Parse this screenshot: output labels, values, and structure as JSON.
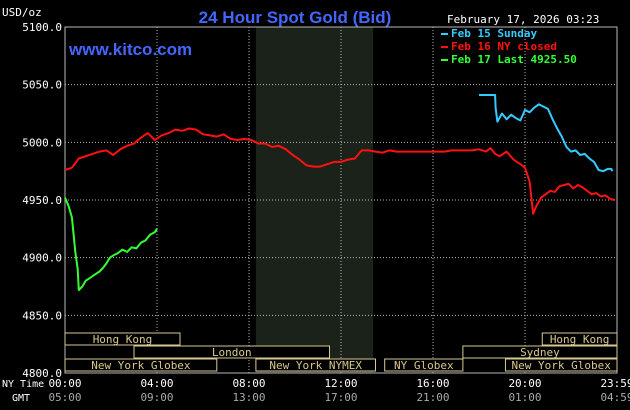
{
  "chart_data": {
    "type": "line",
    "title": "24 Hour Spot Gold (Bid)",
    "ylabel": "USD/oz",
    "timestamp": "February 17, 2026 03:23",
    "watermark": "www.kitco.com",
    "ylim": [
      4800,
      5100
    ],
    "yticks": [
      {
        "value": 5100,
        "label": "5100.0"
      },
      {
        "value": 5050,
        "label": "5050.0"
      },
      {
        "value": 5000,
        "label": "5000.0"
      },
      {
        "value": 4950,
        "label": "4950.0"
      },
      {
        "value": 4900,
        "label": "4900.0"
      },
      {
        "value": 4850,
        "label": "4850.0"
      },
      {
        "value": 4800,
        "label": "4800.0"
      }
    ],
    "xlim": [
      0,
      24
    ],
    "xticks": [
      {
        "hour": 0,
        "ny": "00:00",
        "gmt": "05:00"
      },
      {
        "hour": 4,
        "ny": "04:00",
        "gmt": "09:00"
      },
      {
        "hour": 8,
        "ny": "08:00",
        "gmt": "13:00"
      },
      {
        "hour": 12,
        "ny": "12:00",
        "gmt": "17:00"
      },
      {
        "hour": 16,
        "ny": "16:00",
        "gmt": "21:00"
      },
      {
        "hour": 20,
        "ny": "20:00",
        "gmt": "01:00"
      },
      {
        "hour": 24,
        "ny": "23:59",
        "gmt": "04:59"
      }
    ],
    "xaxis_labels": {
      "ny": "NY Time",
      "gmt": "GMT"
    },
    "shaded_band": {
      "from_hour": 8.3,
      "to_hour": 13.4,
      "color": "#1a221a"
    },
    "series": [
      {
        "name": "Feb 15 Sunday",
        "color": "#33ccff",
        "points": [
          [
            18,
            5041
          ],
          [
            18.5,
            5041
          ],
          [
            18.7,
            5041
          ],
          [
            18.72,
            5030
          ],
          [
            18.8,
            5018
          ],
          [
            19.0,
            5025
          ],
          [
            19.2,
            5020
          ],
          [
            19.4,
            5024
          ],
          [
            19.6,
            5021
          ],
          [
            19.8,
            5019
          ],
          [
            20.0,
            5028
          ],
          [
            20.2,
            5026
          ],
          [
            20.4,
            5030
          ],
          [
            20.6,
            5033
          ],
          [
            20.8,
            5031
          ],
          [
            21.0,
            5029
          ],
          [
            21.2,
            5020
          ],
          [
            21.4,
            5012
          ],
          [
            21.6,
            5005
          ],
          [
            21.8,
            4996
          ],
          [
            22.0,
            4992
          ],
          [
            22.2,
            4993
          ],
          [
            22.4,
            4989
          ],
          [
            22.6,
            4990
          ],
          [
            22.8,
            4986
          ],
          [
            23.0,
            4983
          ],
          [
            23.2,
            4976
          ],
          [
            23.4,
            4975
          ],
          [
            23.6,
            4977
          ],
          [
            23.75,
            4977
          ],
          [
            23.8,
            4975
          ]
        ]
      },
      {
        "name": "Feb 16 NY closed",
        "color": "#ff1111",
        "points": [
          [
            0,
            4976
          ],
          [
            0.3,
            4978
          ],
          [
            0.6,
            4986
          ],
          [
            0.9,
            4988
          ],
          [
            1.2,
            4990
          ],
          [
            1.5,
            4992
          ],
          [
            1.8,
            4993
          ],
          [
            2.1,
            4989
          ],
          [
            2.4,
            4994
          ],
          [
            2.7,
            4997
          ],
          [
            3.0,
            4999
          ],
          [
            3.3,
            5004
          ],
          [
            3.6,
            5008
          ],
          [
            3.9,
            5002
          ],
          [
            4.2,
            5006
          ],
          [
            4.5,
            5008
          ],
          [
            4.8,
            5011
          ],
          [
            5.1,
            5010
          ],
          [
            5.4,
            5012
          ],
          [
            5.7,
            5011
          ],
          [
            6.0,
            5007
          ],
          [
            6.3,
            5006
          ],
          [
            6.6,
            5005
          ],
          [
            6.9,
            5007
          ],
          [
            7.2,
            5003
          ],
          [
            7.5,
            5002
          ],
          [
            7.8,
            5003
          ],
          [
            8.1,
            5002
          ],
          [
            8.4,
            4999
          ],
          [
            8.7,
            4999
          ],
          [
            9.0,
            4996
          ],
          [
            9.3,
            4997
          ],
          [
            9.6,
            4994
          ],
          [
            9.9,
            4989
          ],
          [
            10.2,
            4985
          ],
          [
            10.5,
            4980
          ],
          [
            10.8,
            4979
          ],
          [
            11.1,
            4979
          ],
          [
            11.4,
            4981
          ],
          [
            11.7,
            4983
          ],
          [
            12.0,
            4983
          ],
          [
            12.3,
            4985
          ],
          [
            12.6,
            4986
          ],
          [
            12.9,
            4993
          ],
          [
            13.2,
            4993
          ],
          [
            13.5,
            4992
          ],
          [
            13.8,
            4991
          ],
          [
            14.1,
            4993
          ],
          [
            14.4,
            4992
          ],
          [
            14.7,
            4992
          ],
          [
            15.0,
            4992
          ],
          [
            15.3,
            4992
          ],
          [
            15.6,
            4992
          ],
          [
            15.9,
            4992
          ],
          [
            16.2,
            4992
          ],
          [
            16.5,
            4992
          ],
          [
            16.8,
            4993
          ],
          [
            17.1,
            4993
          ],
          [
            17.4,
            4993
          ],
          [
            17.7,
            4993
          ],
          [
            18.0,
            4994
          ],
          [
            18.3,
            4992
          ],
          [
            18.5,
            4995
          ],
          [
            18.7,
            4990
          ],
          [
            18.9,
            4988
          ],
          [
            19.2,
            4992
          ],
          [
            19.5,
            4985
          ],
          [
            19.8,
            4981
          ],
          [
            20.0,
            4978
          ],
          [
            20.2,
            4966
          ],
          [
            20.35,
            4938
          ],
          [
            20.5,
            4945
          ],
          [
            20.7,
            4952
          ],
          [
            20.9,
            4955
          ],
          [
            21.1,
            4958
          ],
          [
            21.3,
            4957
          ],
          [
            21.5,
            4962
          ],
          [
            21.7,
            4963
          ],
          [
            21.9,
            4964
          ],
          [
            22.1,
            4960
          ],
          [
            22.3,
            4963
          ],
          [
            22.5,
            4961
          ],
          [
            22.7,
            4958
          ],
          [
            22.9,
            4955
          ],
          [
            23.1,
            4956
          ],
          [
            23.3,
            4953
          ],
          [
            23.5,
            4954
          ],
          [
            23.7,
            4951
          ],
          [
            23.9,
            4950
          ]
        ]
      },
      {
        "name": "Feb 17 Last 4925.50",
        "color": "#33ff33",
        "points": [
          [
            0,
            4952
          ],
          [
            0.15,
            4945
          ],
          [
            0.3,
            4935
          ],
          [
            0.45,
            4905
          ],
          [
            0.55,
            4890
          ],
          [
            0.6,
            4872
          ],
          [
            0.75,
            4875
          ],
          [
            0.9,
            4880
          ],
          [
            1.05,
            4882
          ],
          [
            1.2,
            4884
          ],
          [
            1.35,
            4886
          ],
          [
            1.5,
            4888
          ],
          [
            1.65,
            4891
          ],
          [
            1.8,
            4895
          ],
          [
            1.95,
            4900
          ],
          [
            2.1,
            4902
          ],
          [
            2.3,
            4904
          ],
          [
            2.5,
            4907
          ],
          [
            2.7,
            4905
          ],
          [
            2.9,
            4909
          ],
          [
            3.1,
            4908
          ],
          [
            3.3,
            4913
          ],
          [
            3.5,
            4915
          ],
          [
            3.7,
            4920
          ],
          [
            3.9,
            4922
          ],
          [
            4.0,
            4925
          ]
        ]
      }
    ],
    "market_sessions": [
      {
        "name": "Hong Kong",
        "from_hour": 0,
        "to_hour": 5.0,
        "row": 0
      },
      {
        "name": "Hong Kong",
        "from_hour": 20.75,
        "to_hour": 24,
        "row": 0
      },
      {
        "name": "London",
        "from_hour": 3.0,
        "to_hour": 11.5,
        "row": 1
      },
      {
        "name": "Sydney",
        "from_hour": 17.3,
        "to_hour": 24,
        "row": 1
      },
      {
        "name": "New York Globex",
        "from_hour": 0,
        "to_hour": 6.6,
        "row": 2
      },
      {
        "name": "New York NYMEX",
        "from_hour": 8.3,
        "to_hour": 13.5,
        "row": 2
      },
      {
        "name": "NY Globex",
        "from_hour": 13.9,
        "to_hour": 17.3,
        "row": 2
      },
      {
        "name": "New York Globex",
        "from_hour": 19.15,
        "to_hour": 24,
        "row": 2
      }
    ],
    "colors": {
      "background": "#000000",
      "grid": "#b8b8b8",
      "axis_text": "#ffffff",
      "title": "#4466ff",
      "watermark": "#4466ff",
      "session_border": "#d8c890",
      "session_text": "#d8c890"
    }
  }
}
